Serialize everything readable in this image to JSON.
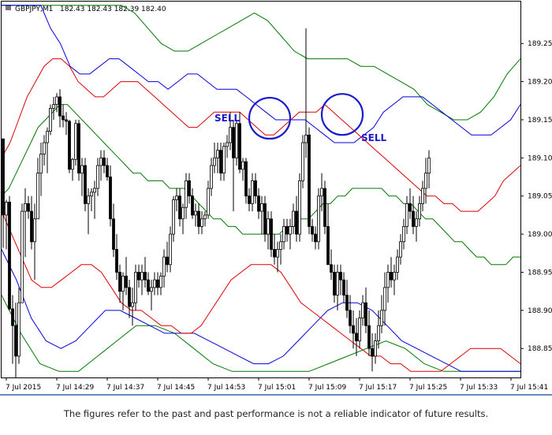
{
  "header": {
    "symbol": "GBPJPY,M1",
    "ohlc": "182.43 182.43 182.39 182.40"
  },
  "footer": {
    "disclaimer": "The figures refer to the past and past performance is not a reliable indicator of future results."
  },
  "colors": {
    "middle_band": "#007700",
    "band_inner": "#dd0000",
    "band_mid": "#0000dd",
    "band_outer": "#007700",
    "candle": "#000000",
    "signal": "#1a1acc",
    "separator": "#3366aa"
  },
  "chart_data": {
    "type": "candlestick",
    "symbol": "GBPJPY",
    "timeframe": "M1",
    "ylim": [
      188.812,
      189.305
    ],
    "y_ticks": [
      "189.25",
      "189.20",
      "189.15",
      "189.10",
      "189.05",
      "189.00",
      "188.95",
      "188.90",
      "188.85"
    ],
    "x_ticks": [
      "7 Jul 2015",
      "7 Jul 14:29",
      "7 Jul 14:37",
      "7 Jul 14:45",
      "7 Jul 14:53",
      "7 Jul 15:01",
      "7 Jul 15:09",
      "7 Jul 15:17",
      "7 Jul 15:25",
      "7 Jul 15:33",
      "7 Jul 15:41"
    ],
    "x_tick_bars": [
      1,
      17,
      33,
      49,
      65,
      81,
      97,
      113,
      129,
      145,
      161
    ],
    "candles": [
      [
        189.125,
        189.125,
        188.982,
        189.025
      ],
      [
        189.025,
        189.045,
        188.98,
        189.042
      ],
      [
        189.042,
        189.05,
        188.9,
        188.902
      ],
      [
        188.902,
        188.92,
        188.83,
        188.88
      ],
      [
        188.88,
        188.91,
        188.81,
        188.84
      ],
      [
        188.84,
        188.93,
        188.83,
        188.91
      ],
      [
        188.91,
        189.04,
        188.91,
        189.03
      ],
      [
        189.03,
        189.06,
        188.97,
        189.04
      ],
      [
        189.04,
        189.05,
        189.02,
        189.03
      ],
      [
        189.03,
        189.05,
        188.98,
        188.99
      ],
      [
        188.99,
        189.04,
        188.94,
        189.02
      ],
      [
        189.02,
        189.1,
        189.02,
        189.08
      ],
      [
        189.08,
        189.12,
        189.05,
        189.105
      ],
      [
        189.105,
        189.13,
        189.09,
        189.12
      ],
      [
        189.12,
        189.14,
        189.08,
        189.135
      ],
      [
        189.135,
        189.17,
        189.13,
        189.165
      ],
      [
        189.165,
        189.18,
        189.15,
        189.17
      ],
      [
        189.17,
        189.185,
        189.16,
        189.18
      ],
      [
        189.18,
        189.19,
        189.14,
        189.155
      ],
      [
        189.155,
        189.17,
        189.14,
        189.15
      ],
      [
        189.15,
        189.16,
        189.13,
        189.148
      ],
      [
        189.148,
        189.15,
        189.08,
        189.085
      ],
      [
        189.085,
        189.1,
        189.07,
        189.098
      ],
      [
        189.098,
        189.15,
        189.09,
        189.145
      ],
      [
        189.145,
        189.15,
        189.07,
        189.08
      ],
      [
        189.08,
        189.1,
        189.05,
        189.09
      ],
      [
        189.09,
        189.1,
        189.03,
        189.04
      ],
      [
        189.04,
        189.06,
        189.0,
        189.05
      ],
      [
        189.05,
        189.06,
        189.03,
        189.055
      ],
      [
        189.055,
        189.07,
        189.02,
        189.06
      ],
      [
        189.06,
        189.1,
        189.05,
        189.09
      ],
      [
        189.09,
        189.11,
        189.07,
        189.1
      ],
      [
        189.1,
        189.11,
        189.08,
        189.09
      ],
      [
        189.09,
        189.1,
        189.07,
        189.075
      ],
      [
        189.075,
        189.09,
        189.01,
        189.02
      ],
      [
        189.02,
        189.04,
        188.97,
        188.98
      ],
      [
        188.98,
        189.0,
        188.94,
        188.95
      ],
      [
        188.95,
        188.96,
        188.91,
        188.925
      ],
      [
        188.925,
        188.95,
        188.9,
        188.945
      ],
      [
        188.945,
        188.97,
        188.92,
        188.93
      ],
      [
        188.93,
        188.94,
        188.89,
        188.905
      ],
      [
        188.905,
        188.93,
        188.88,
        188.91
      ],
      [
        188.91,
        188.96,
        188.9,
        188.95
      ],
      [
        188.95,
        188.96,
        188.93,
        188.94
      ],
      [
        188.94,
        188.96,
        188.92,
        188.95
      ],
      [
        188.95,
        188.97,
        188.93,
        188.94
      ],
      [
        188.94,
        188.95,
        188.92,
        188.925
      ],
      [
        188.925,
        188.94,
        188.9,
        188.93
      ],
      [
        188.93,
        188.95,
        188.92,
        188.94
      ],
      [
        188.94,
        188.95,
        188.92,
        188.93
      ],
      [
        188.93,
        188.95,
        188.92,
        188.945
      ],
      [
        188.945,
        188.98,
        188.93,
        188.97
      ],
      [
        188.97,
        188.99,
        188.95,
        188.96
      ],
      [
        188.96,
        189.01,
        188.95,
        189.0
      ],
      [
        189.0,
        189.05,
        188.99,
        189.045
      ],
      [
        189.045,
        189.06,
        189.03,
        189.05
      ],
      [
        189.05,
        189.06,
        189.01,
        189.02
      ],
      [
        189.02,
        189.04,
        189.0,
        189.035
      ],
      [
        189.035,
        189.08,
        189.02,
        189.07
      ],
      [
        189.07,
        189.08,
        189.04,
        189.05
      ],
      [
        189.05,
        189.06,
        189.02,
        189.025
      ],
      [
        189.025,
        189.04,
        189.01,
        189.03
      ],
      [
        189.03,
        189.04,
        189.0,
        189.01
      ],
      [
        189.01,
        189.03,
        189.0,
        189.02
      ],
      [
        189.02,
        189.03,
        189.01,
        189.025
      ],
      [
        189.025,
        189.07,
        189.02,
        189.06
      ],
      [
        189.06,
        189.1,
        189.05,
        189.09
      ],
      [
        189.09,
        189.12,
        189.08,
        189.1
      ],
      [
        189.1,
        189.12,
        189.08,
        189.11
      ],
      [
        189.11,
        189.12,
        189.07,
        189.08
      ],
      [
        189.08,
        189.12,
        189.07,
        189.115
      ],
      [
        189.115,
        189.13,
        189.1,
        189.12
      ],
      [
        189.12,
        189.16,
        189.11,
        189.14
      ],
      [
        189.14,
        189.15,
        189.03,
        189.1
      ],
      [
        189.1,
        189.15,
        189.09,
        189.145
      ],
      [
        189.145,
        189.16,
        189.08,
        189.085
      ],
      [
        189.085,
        189.1,
        189.07,
        189.095
      ],
      [
        189.095,
        189.1,
        189.04,
        189.05
      ],
      [
        189.05,
        189.06,
        189.03,
        189.04
      ],
      [
        189.04,
        189.08,
        189.03,
        189.07
      ],
      [
        189.07,
        189.08,
        189.04,
        189.05
      ],
      [
        189.05,
        189.06,
        189.02,
        189.03
      ],
      [
        189.03,
        189.05,
        189.0,
        189.04
      ],
      [
        189.04,
        189.05,
        188.99,
        189.0
      ],
      [
        189.0,
        189.03,
        188.98,
        189.02
      ],
      [
        189.02,
        189.03,
        188.97,
        188.98
      ],
      [
        188.98,
        189.0,
        188.96,
        188.97
      ],
      [
        188.97,
        188.99,
        188.95,
        188.98
      ],
      [
        188.98,
        189.0,
        188.96,
        188.99
      ],
      [
        188.99,
        189.02,
        188.98,
        189.01
      ],
      [
        189.01,
        189.02,
        188.99,
        189.0
      ],
      [
        189.0,
        189.02,
        188.98,
        189.01
      ],
      [
        189.01,
        189.04,
        189.0,
        189.03
      ],
      [
        189.03,
        189.05,
        188.99,
        189.0
      ],
      [
        189.0,
        189.08,
        188.99,
        189.07
      ],
      [
        189.07,
        189.13,
        189.06,
        189.12
      ],
      [
        189.12,
        189.27,
        189.1,
        189.13
      ],
      [
        189.13,
        189.14,
        189.0,
        189.01
      ],
      [
        189.01,
        189.02,
        188.99,
        189.0
      ],
      [
        189.0,
        189.01,
        188.98,
        188.99
      ],
      [
        188.99,
        189.06,
        188.98,
        189.05
      ],
      [
        189.05,
        189.08,
        189.03,
        189.06
      ],
      [
        189.06,
        189.07,
        189.0,
        189.01
      ],
      [
        189.01,
        189.04,
        188.96,
        188.96
      ],
      [
        188.96,
        188.98,
        188.94,
        188.95
      ],
      [
        188.95,
        188.96,
        188.91,
        188.92
      ],
      [
        188.92,
        188.96,
        188.9,
        188.95
      ],
      [
        188.95,
        188.96,
        188.92,
        188.94
      ],
      [
        188.94,
        188.95,
        188.91,
        188.92
      ],
      [
        188.92,
        188.94,
        188.89,
        188.9
      ],
      [
        188.9,
        188.92,
        188.87,
        188.88
      ],
      [
        188.88,
        188.9,
        188.85,
        188.87
      ],
      [
        188.87,
        188.89,
        188.84,
        188.86
      ],
      [
        188.86,
        188.9,
        188.85,
        188.89
      ],
      [
        188.89,
        188.92,
        188.88,
        188.91
      ],
      [
        188.91,
        188.93,
        188.87,
        188.88
      ],
      [
        188.88,
        188.9,
        188.84,
        188.85
      ],
      [
        188.85,
        188.87,
        188.82,
        188.84
      ],
      [
        188.84,
        188.87,
        188.83,
        188.86
      ],
      [
        188.86,
        188.9,
        188.85,
        188.88
      ],
      [
        188.88,
        188.92,
        188.87,
        188.9
      ],
      [
        188.9,
        188.95,
        188.88,
        188.93
      ],
      [
        188.93,
        188.96,
        188.91,
        188.95
      ],
      [
        188.95,
        188.97,
        188.93,
        188.94
      ],
      [
        188.94,
        188.96,
        188.92,
        188.95
      ],
      [
        188.95,
        188.98,
        188.94,
        188.97
      ],
      [
        188.97,
        189.0,
        188.96,
        188.99
      ],
      [
        188.99,
        189.02,
        188.98,
        189.01
      ],
      [
        189.01,
        189.05,
        189.0,
        189.04
      ],
      [
        189.04,
        189.06,
        189.02,
        189.03
      ],
      [
        189.03,
        189.05,
        189.0,
        189.01
      ],
      [
        189.01,
        189.03,
        188.99,
        189.02
      ],
      [
        189.02,
        189.05,
        189.01,
        189.04
      ],
      [
        189.04,
        189.07,
        189.03,
        189.06
      ],
      [
        189.06,
        189.1,
        189.04,
        189.08
      ],
      [
        189.08,
        189.11,
        189.06,
        189.1
      ]
    ],
    "bands": {
      "middle": [
        189.05,
        189.06,
        189.08,
        189.1,
        189.12,
        189.14,
        189.15,
        189.16,
        189.17,
        189.17,
        189.16,
        189.15,
        189.14,
        189.13,
        189.12,
        189.11,
        189.1,
        189.09,
        189.08,
        189.08,
        189.07,
        189.07,
        189.07,
        189.06,
        189.06,
        189.06,
        189.05,
        189.04,
        189.03,
        189.02,
        189.02,
        189.01,
        189.01,
        189.0,
        189.0,
        189.0,
        189.0,
        189.0,
        189.0,
        189.01,
        189.01,
        189.02,
        189.02,
        189.03,
        189.04,
        189.04,
        189.05,
        189.05,
        189.06,
        189.06,
        189.06,
        189.06,
        189.06,
        189.05,
        189.05,
        189.04,
        189.04,
        189.03,
        189.02,
        189.02,
        189.01,
        189.0,
        188.99,
        188.99,
        188.98,
        188.97,
        188.97,
        188.96,
        188.96,
        188.96,
        188.97,
        188.97
      ],
      "inner_upper": [
        189.1,
        189.12,
        189.15,
        189.18,
        189.2,
        189.22,
        189.23,
        189.23,
        189.22,
        189.2,
        189.19,
        189.18,
        189.18,
        189.19,
        189.2,
        189.2,
        189.2,
        189.19,
        189.18,
        189.17,
        189.16,
        189.15,
        189.14,
        189.14,
        189.15,
        189.16,
        189.16,
        189.16,
        189.16,
        189.15,
        189.14,
        189.13,
        189.13,
        189.14,
        189.15,
        189.16,
        189.16,
        189.16,
        189.17,
        189.16,
        189.15,
        189.14,
        189.13,
        189.12,
        189.11,
        189.1,
        189.09,
        189.08,
        189.07,
        189.06,
        189.05,
        189.05,
        189.04,
        189.04,
        189.03,
        189.03,
        189.03,
        189.04,
        189.05,
        189.07,
        189.08,
        189.09
      ],
      "inner_lower": [
        189.03,
        189.0,
        188.97,
        188.94,
        188.93,
        188.93,
        188.94,
        188.95,
        188.96,
        188.96,
        188.95,
        188.93,
        188.91,
        188.9,
        188.9,
        188.89,
        188.88,
        188.88,
        188.87,
        188.87,
        188.88,
        188.9,
        188.92,
        188.94,
        188.95,
        188.96,
        188.96,
        188.96,
        188.95,
        188.93,
        188.91,
        188.9,
        188.89,
        188.88,
        188.87,
        188.86,
        188.85,
        188.84,
        188.84,
        188.83,
        188.83,
        188.82,
        188.82,
        188.82,
        188.82,
        188.83,
        188.84,
        188.85,
        188.85,
        188.85,
        188.85,
        188.84,
        188.83
      ],
      "mid_upper": [
        189.3,
        189.3,
        189.3,
        189.3,
        189.3,
        189.27,
        189.25,
        189.22,
        189.21,
        189.21,
        189.22,
        189.23,
        189.23,
        189.22,
        189.21,
        189.2,
        189.2,
        189.19,
        189.2,
        189.21,
        189.21,
        189.2,
        189.19,
        189.19,
        189.19,
        189.18,
        189.17,
        189.16,
        189.15,
        189.15,
        189.15,
        189.15,
        189.14,
        189.13,
        189.12,
        189.12,
        189.12,
        189.13,
        189.14,
        189.16,
        189.17,
        189.18,
        189.18,
        189.18,
        189.17,
        189.16,
        189.15,
        189.14,
        189.13,
        189.13,
        189.13,
        189.14,
        189.15,
        189.17
      ],
      "mid_lower": [
        188.98,
        188.94,
        188.89,
        188.86,
        188.85,
        188.86,
        188.88,
        188.9,
        188.9,
        188.89,
        188.88,
        188.87,
        188.87,
        188.87,
        188.86,
        188.85,
        188.84,
        188.83,
        188.83,
        188.84,
        188.86,
        188.88,
        188.9,
        188.91,
        188.91,
        188.9,
        188.88,
        188.86,
        188.85,
        188.84,
        188.83,
        188.82,
        188.82,
        188.82,
        188.82,
        188.82
      ],
      "outer_upper": [
        189.3,
        189.3,
        189.3,
        189.3,
        189.3,
        189.3,
        189.3,
        189.3,
        189.3,
        189.3,
        189.29,
        189.27,
        189.25,
        189.24,
        189.24,
        189.25,
        189.26,
        189.27,
        189.28,
        189.29,
        189.28,
        189.26,
        189.24,
        189.23,
        189.23,
        189.23,
        189.23,
        189.22,
        189.22,
        189.21,
        189.2,
        189.19,
        189.17,
        189.16,
        189.15,
        189.15,
        189.16,
        189.18,
        189.21,
        189.23
      ],
      "outer_lower": [
        188.92,
        188.87,
        188.83,
        188.82,
        188.82,
        188.84,
        188.86,
        188.88,
        188.88,
        188.87,
        188.85,
        188.83,
        188.82,
        188.82,
        188.82,
        188.82,
        188.82,
        188.83,
        188.84,
        188.85,
        188.86,
        188.85,
        188.83,
        188.82,
        188.82,
        188.82,
        188.82,
        188.82
      ]
    },
    "signals": [
      {
        "label": "SELL",
        "bar": 84,
        "price": 189.152
      },
      {
        "label": "SELL",
        "bar": 107,
        "price": 189.157
      }
    ]
  }
}
